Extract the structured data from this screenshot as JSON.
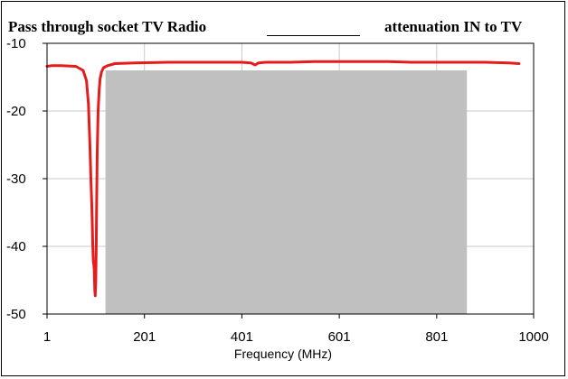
{
  "title_left": "Pass through socket TV Radio",
  "title_right": "attenuation IN to TV",
  "colors": {
    "series": "#e61b1b",
    "shade": "#c0c0c0",
    "grid": "#c8c8c8",
    "axis": "#000000"
  },
  "chart_data": {
    "type": "line",
    "title": "Pass through socket TV Radio attenuation IN to TV",
    "xlabel": "Frequency (MHz)",
    "ylabel": "",
    "xlim": [
      1,
      1000
    ],
    "ylim": [
      -50,
      -10
    ],
    "x_ticks": [
      1,
      201,
      401,
      601,
      801,
      1000
    ],
    "x_tick_labels": [
      "1",
      "201",
      "401",
      "601",
      "801",
      "1000"
    ],
    "y_ticks": [
      -50,
      -40,
      -30,
      -20,
      -10
    ],
    "y_tick_labels": [
      "-50",
      "-40",
      "-30",
      "-20",
      "-10"
    ],
    "grid": true,
    "shaded_region": {
      "x": [
        121,
        863
      ],
      "y": [
        -50,
        -14
      ]
    },
    "series": [
      {
        "x": [
          1,
          10,
          30,
          60,
          75,
          82,
          86,
          89,
          91,
          93,
          94,
          95,
          96,
          97,
          98,
          99,
          100,
          101,
          102,
          103,
          104,
          106,
          108,
          110,
          113,
          117,
          125,
          140,
          180,
          250,
          320,
          400,
          420,
          428,
          435,
          450,
          500,
          550,
          600,
          650,
          700,
          750,
          800,
          850,
          900,
          950,
          970
        ],
        "y": [
          -13.4,
          -13.3,
          -13.3,
          -13.4,
          -14,
          -15.5,
          -19,
          -25,
          -30,
          -34,
          -37,
          -40,
          -42.3,
          -42.6,
          -43.5,
          -46.5,
          -47.3,
          -45,
          -40,
          -33,
          -26,
          -20,
          -17,
          -15.2,
          -14.2,
          -13.6,
          -13.3,
          -13,
          -12.9,
          -12.8,
          -12.8,
          -12.8,
          -12.9,
          -13.2,
          -12.9,
          -12.8,
          -12.8,
          -12.7,
          -12.7,
          -12.7,
          -12.7,
          -12.8,
          -12.8,
          -12.8,
          -12.8,
          -12.9,
          -13
        ]
      }
    ]
  }
}
